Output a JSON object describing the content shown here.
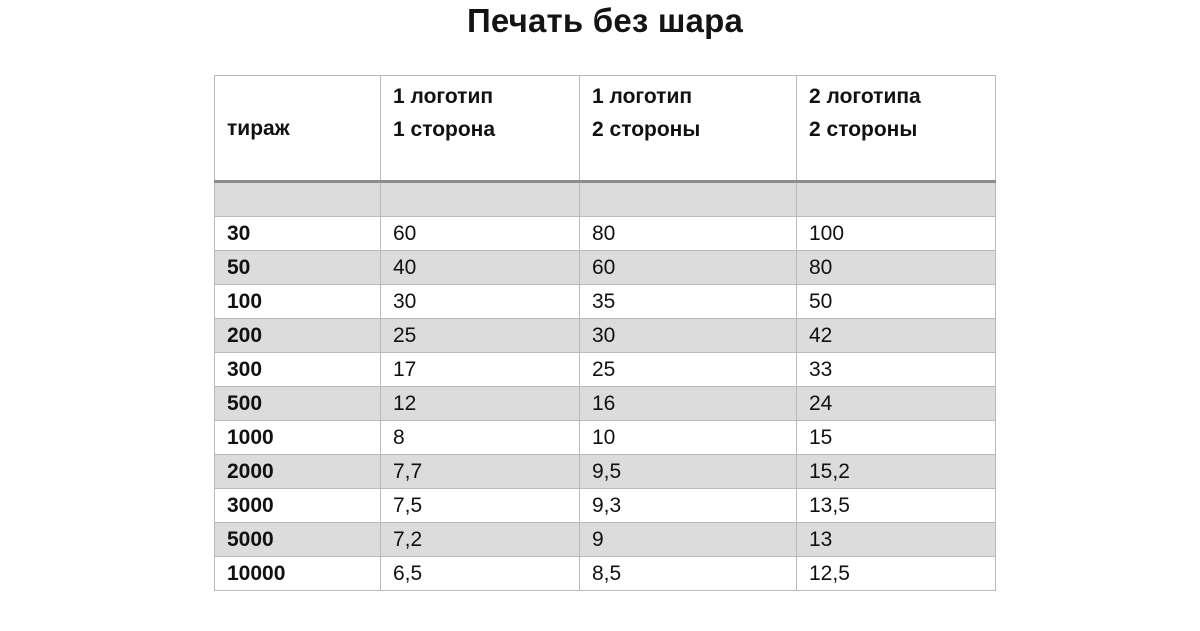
{
  "title": "Печать без шара",
  "table": {
    "headers": [
      {
        "line1": "тираж",
        "line2": ""
      },
      {
        "line1": "1 логотип",
        "line2": "1 сторона"
      },
      {
        "line1": "1 логотип",
        "line2": "2 стороны"
      },
      {
        "line1": "2 логотипа",
        "line2": "2 стороны"
      }
    ],
    "rows": [
      [
        "30",
        "60",
        "80",
        "100"
      ],
      [
        "50",
        "40",
        "60",
        "80"
      ],
      [
        "100",
        "30",
        "35",
        "50"
      ],
      [
        "200",
        "25",
        "30",
        "42"
      ],
      [
        "300",
        "17",
        "25",
        "33"
      ],
      [
        "500",
        "12",
        "16",
        "24"
      ],
      [
        "1000",
        "8",
        "10",
        "15"
      ],
      [
        "2000",
        "7,7",
        "9,5",
        "15,2"
      ],
      [
        "3000",
        "7,5",
        "9,3",
        "13,5"
      ],
      [
        "5000",
        "7,2",
        "9",
        "13"
      ],
      [
        "10000",
        "6,5",
        "8,5",
        "12,5"
      ]
    ],
    "shaded_color": "#dcdcdc",
    "border_color": "#b9b9b9"
  }
}
